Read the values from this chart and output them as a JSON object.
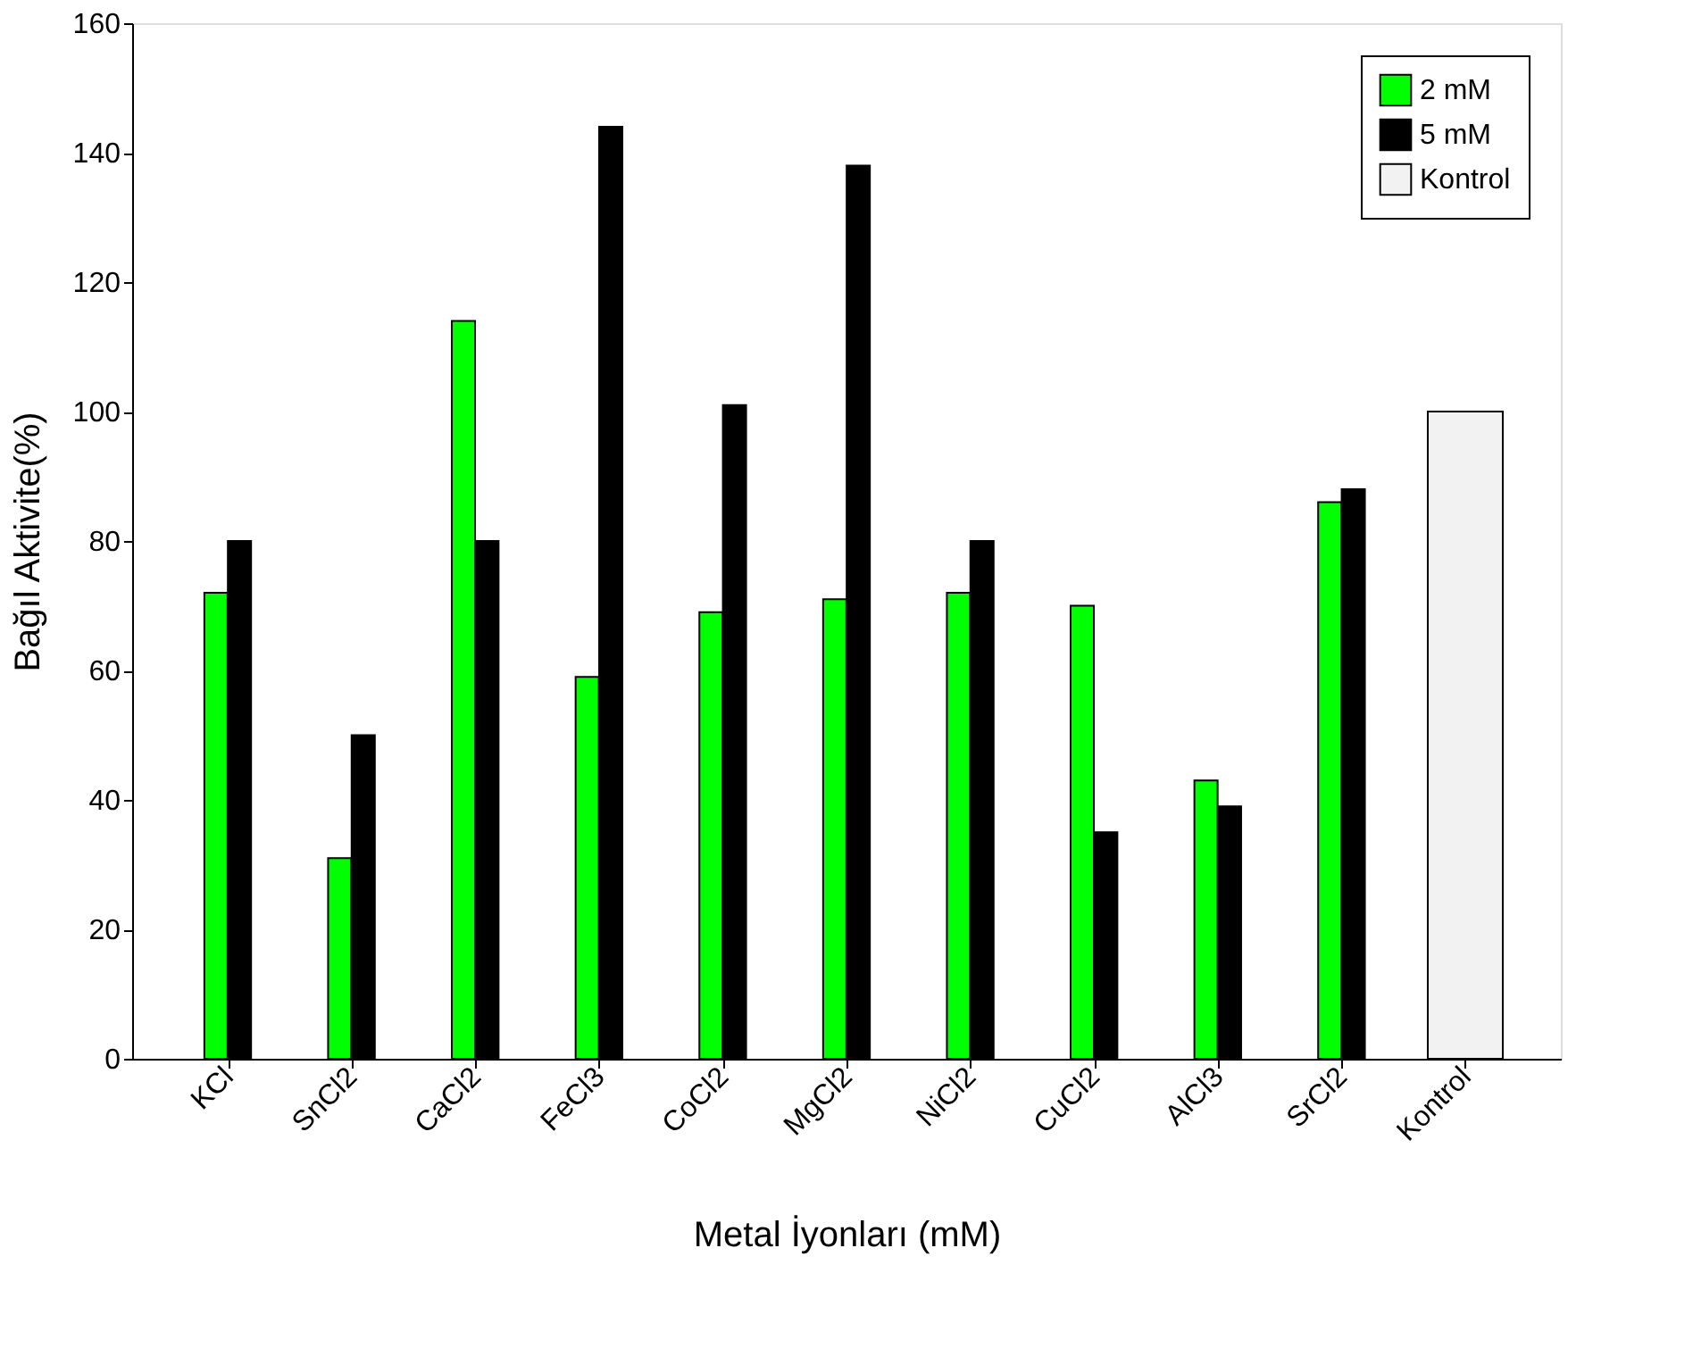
{
  "chart_data": {
    "type": "bar",
    "xlabel": "Metal İyonları (mM)",
    "ylabel": "Bağıl Aktivite(%)",
    "categories": [
      "KCl",
      "SnCl2",
      "CaCl2",
      "FeCl3",
      "CoCl2",
      "MgCl2",
      "NiCl2",
      "CuCl2",
      "AlCl3",
      "SrCl2",
      "Kontrol"
    ],
    "series": [
      {
        "name": "2 mM",
        "color": "#00ff00",
        "values": [
          72,
          31,
          114,
          59,
          69,
          71,
          72,
          70,
          43,
          86,
          null
        ]
      },
      {
        "name": "5 mM",
        "color": "#000000",
        "values": [
          80,
          50,
          80,
          144,
          101,
          138,
          80,
          35,
          39,
          88,
          null
        ]
      },
      {
        "name": "Kontrol",
        "color": "#f2f2f2",
        "values": [
          null,
          null,
          null,
          null,
          null,
          null,
          null,
          null,
          null,
          null,
          100
        ]
      }
    ],
    "ylim": [
      0,
      160
    ],
    "yticks": [
      0,
      20,
      40,
      60,
      80,
      100,
      120,
      140,
      160
    ],
    "grid": false,
    "legend": "top right"
  }
}
